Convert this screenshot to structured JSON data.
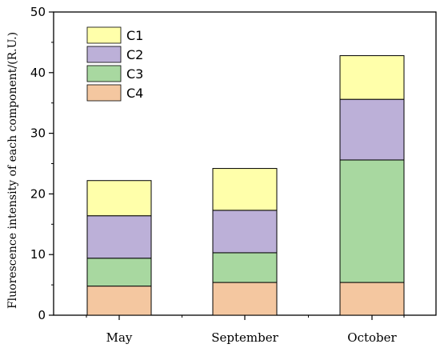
{
  "chart_data": {
    "type": "bar",
    "stacked": true,
    "categories": [
      "May",
      "September",
      "October"
    ],
    "series": [
      {
        "name": "C4",
        "values": [
          4.8,
          5.4,
          5.4
        ],
        "color": "#F4C7A0"
      },
      {
        "name": "C3",
        "values": [
          4.6,
          4.9,
          20.2
        ],
        "color": "#A8D8A0"
      },
      {
        "name": "C2",
        "values": [
          7.0,
          7.0,
          10.0
        ],
        "color": "#BCB0D8"
      },
      {
        "name": "C1",
        "values": [
          5.8,
          6.9,
          7.2
        ],
        "color": "#FFFFAA"
      }
    ],
    "title": "",
    "xlabel": "",
    "ylabel": "Fluorescence intensity of each component/(R.U.)",
    "ylim": [
      0,
      50
    ],
    "yticks": [
      0,
      10,
      20,
      30,
      40,
      50
    ],
    "grid": false,
    "legend": {
      "placement": "top-left",
      "order": [
        "C1",
        "C2",
        "C3",
        "C4"
      ]
    }
  }
}
